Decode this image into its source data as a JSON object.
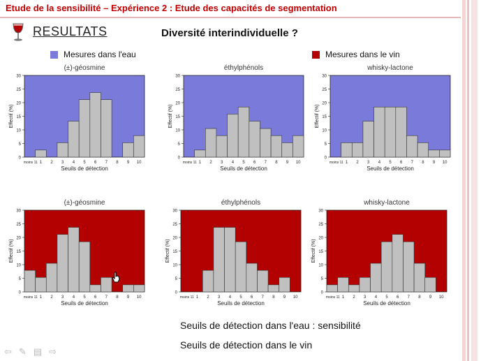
{
  "header": {
    "title": "Etude de la sensibilité – Expérience 2 : Etude des capacités de segmentation"
  },
  "resultats_label": "RESULTATS",
  "subtitle": "Diversité interindividuelle ?",
  "legend": {
    "water": {
      "label": "Mesures dans l'eau",
      "color": "#7a7adb"
    },
    "wine": {
      "label": "Mesures dans le vin",
      "color": "#b30000"
    }
  },
  "colors": {
    "bar": "#c0c0c0",
    "bar_edge": "#333333",
    "accent": "#c00000",
    "stripe": "#f0d2d2"
  },
  "chart_data": [
    {
      "type": "bar",
      "title": "(±)-géosmine",
      "medium": "water",
      "ylabel": "Effectif (%)",
      "xlabel": "Seuils de détection",
      "categories": [
        "moins 11",
        "1",
        "2",
        "3",
        "4",
        "5",
        "6",
        "7",
        "8",
        "9",
        "10"
      ],
      "ylim": [
        0,
        30
      ],
      "yticks": [
        0,
        5,
        10,
        15,
        20,
        25,
        30
      ],
      "series": [
        {
          "values": [
            0,
            2.6,
            0,
            5.3,
            13.2,
            21.1,
            23.7,
            21.1,
            0,
            5.3,
            7.9
          ]
        }
      ]
    },
    {
      "type": "bar",
      "title": "éthylphénols",
      "medium": "water",
      "ylabel": "Effectif (%)",
      "xlabel": "Seuils de détection",
      "categories": [
        "moins 11",
        "1",
        "2",
        "3",
        "4",
        "5",
        "6",
        "7",
        "8",
        "9",
        "10"
      ],
      "ylim": [
        0,
        30
      ],
      "yticks": [
        0,
        5,
        10,
        15,
        20,
        25,
        30
      ],
      "series": [
        {
          "values": [
            0,
            2.6,
            10.5,
            7.9,
            15.8,
            18.4,
            13.2,
            10.5,
            7.9,
            5.3,
            7.9
          ]
        }
      ]
    },
    {
      "type": "bar",
      "title": "whisky-lactone",
      "medium": "water",
      "ylabel": "Effectif (%)",
      "xlabel": "Seuils de détection",
      "categories": [
        "moins 11",
        "1",
        "2",
        "3",
        "4",
        "5",
        "6",
        "7",
        "8",
        "9",
        "10"
      ],
      "ylim": [
        0,
        30
      ],
      "yticks": [
        0,
        5,
        10,
        15,
        20,
        25,
        30
      ],
      "series": [
        {
          "values": [
            0,
            5.3,
            5.3,
            13.2,
            18.4,
            18.4,
            18.4,
            7.9,
            5.3,
            2.6,
            2.6
          ]
        }
      ]
    },
    {
      "type": "bar",
      "title": "(±)-géosmine",
      "medium": "wine",
      "ylabel": "Effectif (%)",
      "xlabel": "Seuils de détection",
      "categories": [
        "moins 11",
        "1",
        "2",
        "3",
        "4",
        "5",
        "6",
        "7",
        "8",
        "9",
        "10"
      ],
      "ylim": [
        0,
        30
      ],
      "yticks": [
        0,
        5,
        10,
        15,
        20,
        25,
        30
      ],
      "series": [
        {
          "values": [
            7.9,
            5.3,
            10.5,
            21.1,
            23.7,
            18.4,
            2.6,
            5.3,
            0,
            2.6,
            2.6
          ]
        }
      ]
    },
    {
      "type": "bar",
      "title": "éthylphénols",
      "medium": "wine",
      "ylabel": "Effectif (%)",
      "xlabel": "Seuils de détection",
      "categories": [
        "moins 11",
        "1",
        "2",
        "3",
        "4",
        "5",
        "6",
        "7",
        "8",
        "9",
        "10"
      ],
      "ylim": [
        0,
        30
      ],
      "yticks": [
        0,
        5,
        10,
        15,
        20,
        25,
        30
      ],
      "series": [
        {
          "values": [
            0,
            0,
            7.9,
            23.7,
            23.7,
            18.4,
            10.5,
            7.9,
            2.6,
            5.3,
            0
          ]
        }
      ]
    },
    {
      "type": "bar",
      "title": "whisky-lactone",
      "medium": "wine",
      "ylabel": "Effectif (%)",
      "xlabel": "Seuils de détection",
      "categories": [
        "moins 11",
        "1",
        "2",
        "3",
        "4",
        "5",
        "6",
        "7",
        "8",
        "9",
        "10"
      ],
      "ylim": [
        0,
        30
      ],
      "yticks": [
        0,
        5,
        10,
        15,
        20,
        25,
        30
      ],
      "series": [
        {
          "values": [
            2.6,
            5.3,
            2.6,
            5.3,
            10.5,
            18.4,
            21.1,
            18.4,
            10.5,
            5.3,
            0
          ]
        }
      ]
    }
  ],
  "captions": {
    "water": "Seuils de détection dans l'eau : sensibilité",
    "wine": "Seuils de détection dans le vin"
  },
  "nav_icons": [
    "arrow-left-icon",
    "pen-icon",
    "slides-icon",
    "arrow-right-icon"
  ]
}
